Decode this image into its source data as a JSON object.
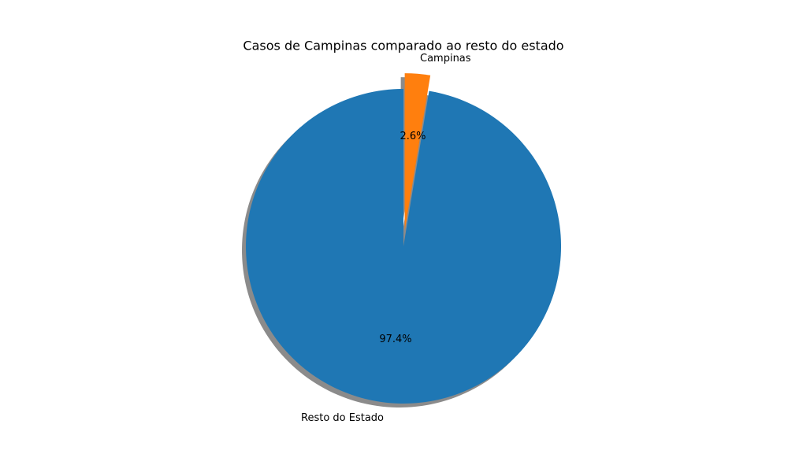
{
  "chart_data": {
    "type": "pie",
    "title": "Casos de Campinas comparado ao resto do estado",
    "shadow": true,
    "slices": [
      {
        "label": "Campinas",
        "percent_label": "2.6%",
        "value": 2.6,
        "color": "#ff7f0e",
        "exploded": true
      },
      {
        "label": "Resto do Estado",
        "percent_label": "97.4%",
        "value": 97.4,
        "color": "#1f77b4",
        "exploded": false
      }
    ]
  }
}
